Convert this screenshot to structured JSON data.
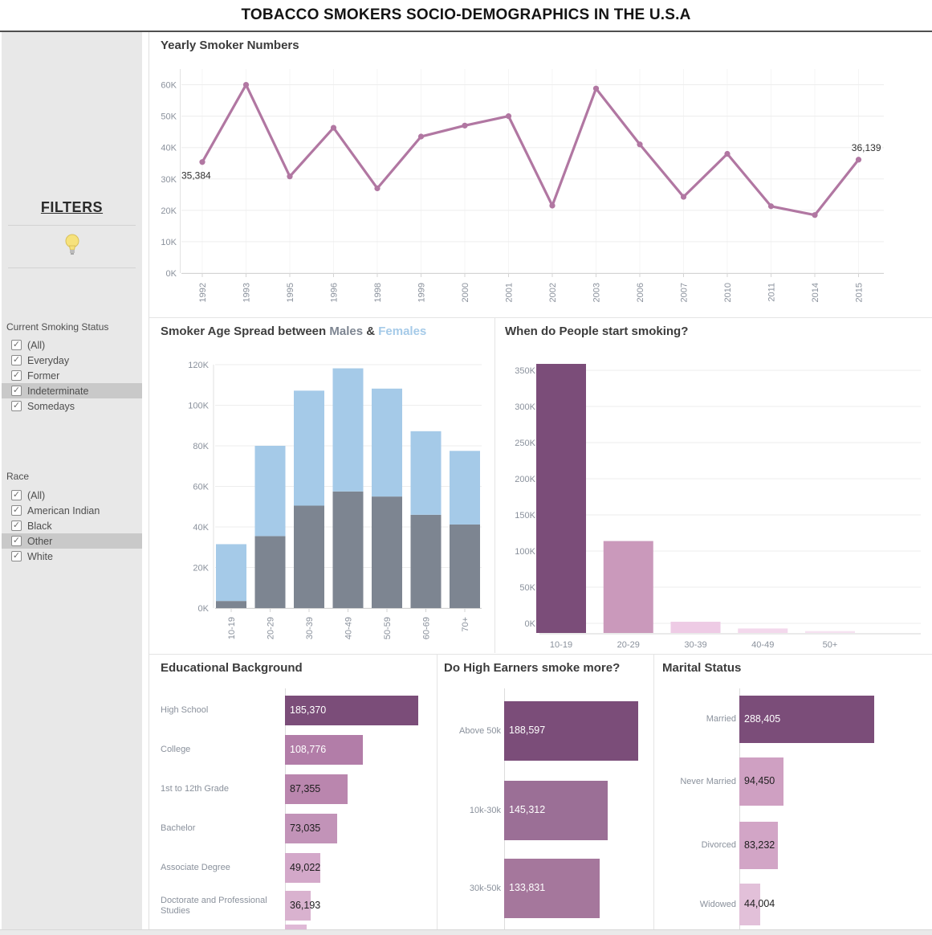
{
  "title": "TOBACCO SMOKERS SOCIO-DEMOGRAPHICS IN THE U.S.A",
  "sidebar": {
    "heading": "FILTERS",
    "highlight_icon": "lightbulb-icon",
    "groups": [
      {
        "label": "Current Smoking Status",
        "options": [
          {
            "label": "(All)",
            "checked": true,
            "highlighted": false
          },
          {
            "label": "Everyday",
            "checked": true,
            "highlighted": false
          },
          {
            "label": "Former",
            "checked": true,
            "highlighted": false
          },
          {
            "label": "Indeterminate",
            "checked": true,
            "highlighted": true
          },
          {
            "label": "Somedays",
            "checked": true,
            "highlighted": false
          }
        ]
      },
      {
        "label": "Race",
        "options": [
          {
            "label": "(All)",
            "checked": true,
            "highlighted": false
          },
          {
            "label": "American Indian",
            "checked": true,
            "highlighted": false
          },
          {
            "label": "Black",
            "checked": true,
            "highlighted": false
          },
          {
            "label": "Other",
            "checked": true,
            "highlighted": true
          },
          {
            "label": "White",
            "checked": true,
            "highlighted": false
          }
        ]
      }
    ]
  },
  "chart_data": [
    {
      "id": "yearly",
      "type": "line",
      "title": "Yearly Smoker Numbers",
      "x": [
        "1992",
        "1993",
        "1995",
        "1996",
        "1998",
        "1999",
        "2000",
        "2001",
        "2002",
        "2003",
        "2006",
        "2007",
        "2010",
        "2011",
        "2014",
        "2015"
      ],
      "values": [
        35384,
        60000,
        30800,
        46300,
        27000,
        43500,
        47000,
        50000,
        21500,
        58800,
        41000,
        24300,
        38000,
        21300,
        18500,
        36139
      ],
      "first_point_label": "35,384",
      "last_point_label": "36,139",
      "ylim": [
        0,
        65000
      ],
      "ytick_labels": [
        "0K",
        "10K",
        "20K",
        "30K",
        "40K",
        "50K",
        "60K"
      ],
      "line_color": "#b177a2",
      "grid": true,
      "legend_position": "none"
    },
    {
      "id": "age-spread",
      "type": "bar",
      "stacked": true,
      "title_parts": [
        {
          "text": "Smoker Age Spread between ",
          "color": "#3f3f3f"
        },
        {
          "text": "Males",
          "color": "#7d8591"
        },
        {
          "text": " & ",
          "color": "#3f3f3f"
        },
        {
          "text": "Females",
          "color": "#a5cae8"
        }
      ],
      "categories": [
        "10-19",
        "20-29",
        "30-39",
        "40-49",
        "50-59",
        "60-69",
        "70+"
      ],
      "series": [
        {
          "name": "Males",
          "color": "#7d8591",
          "values": [
            3500,
            35500,
            50500,
            57500,
            55000,
            46000,
            41200
          ]
        },
        {
          "name": "Females",
          "color": "#a5cae8",
          "values": [
            28000,
            44500,
            56700,
            60700,
            53200,
            41200,
            36300
          ]
        }
      ],
      "ylim": [
        0,
        125000
      ],
      "ytick_labels": [
        "0K",
        "20K",
        "40K",
        "60K",
        "80K",
        "100K",
        "120K"
      ],
      "grid": true
    },
    {
      "id": "start-age",
      "type": "bar",
      "title": "When do People start smoking?",
      "categories": [
        "10-19",
        "20-29",
        "30-39",
        "40-49",
        "50+"
      ],
      "values": [
        360000,
        123000,
        15000,
        6000,
        2500
      ],
      "bar_colors": [
        "#7b4d79",
        "#ca99bb",
        "#eecbe5",
        "#f3d8ec",
        "#f6e2f1"
      ],
      "ylim": [
        0,
        375000
      ],
      "ytick_labels": [
        "0K",
        "50K",
        "100K",
        "150K",
        "200K",
        "250K",
        "300K",
        "350K"
      ],
      "grid": true
    },
    {
      "id": "education",
      "type": "bar",
      "orientation": "horizontal",
      "title": "Educational Background",
      "categories": [
        "High School",
        "College",
        "1st to 12th Grade",
        "Bachelor",
        "Associate Degree",
        "Doctorate and Professional Studies"
      ],
      "values": [
        185370,
        108776,
        87355,
        73035,
        49022,
        36193
      ],
      "value_labels": [
        "185,370",
        "108,776",
        "87,355",
        "73,035",
        "49,022",
        "36,193"
      ],
      "bar_colors": [
        "#7b4d79",
        "#b27da8",
        "#ba86ae",
        "#c293b8",
        "#d3a8c9",
        "#d9b2cf"
      ],
      "value_text_colors": [
        "#ffffff",
        "#ffffff",
        "#1e1e1e",
        "#1e1e1e",
        "#1e1e1e",
        "#1e1e1e"
      ],
      "clipped_partial_bar": true
    },
    {
      "id": "income",
      "type": "bar",
      "orientation": "horizontal",
      "title": "Do High Earners smoke more?",
      "categories": [
        "Above 50k",
        "10k-30k",
        "30k-50k"
      ],
      "values": [
        188597,
        145312,
        133831
      ],
      "value_labels": [
        "188,597",
        "145,312",
        "133,831"
      ],
      "bar_colors": [
        "#7b4d79",
        "#9b6f96",
        "#a5779c"
      ],
      "value_text_colors": [
        "#ffffff",
        "#ffffff",
        "#ffffff"
      ]
    },
    {
      "id": "marital",
      "type": "bar",
      "orientation": "horizontal",
      "title": "Marital Status",
      "categories": [
        "Married",
        "Never Married",
        "Divorced",
        "Widowed"
      ],
      "values": [
        288405,
        94450,
        83232,
        44004
      ],
      "value_labels": [
        "288,405",
        "94,450",
        "83,232",
        "44,004"
      ],
      "bar_colors": [
        "#7b4d79",
        "#cfa0c2",
        "#d2a5c6",
        "#e2c0d9"
      ],
      "value_text_colors": [
        "#ffffff",
        "#1e1e1e",
        "#1e1e1e",
        "#1e1e1e"
      ]
    }
  ]
}
